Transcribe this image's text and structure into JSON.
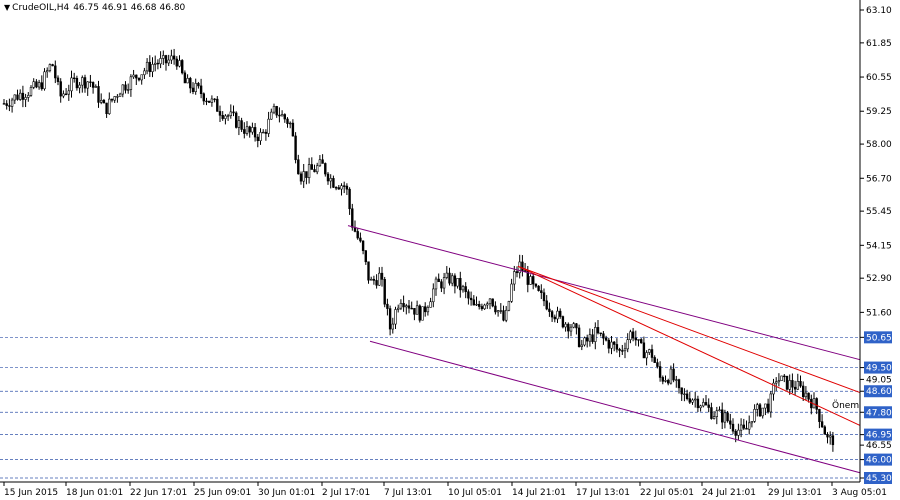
{
  "header": {
    "symbol": "CrudeOIL,H4",
    "open": "46.75",
    "high": "46.91",
    "low": "46.68",
    "close": "46.80"
  },
  "colors": {
    "background": "#ffffff",
    "candle": "#000000",
    "channel": "#800080",
    "fan": "#e00000",
    "level": "#3355aa",
    "level_label_bg": "#2f62c8",
    "level_label_text": "#ffffff"
  },
  "chart_data": {
    "type": "candlestick",
    "title": "CrudeOIL,H4",
    "ylim": [
      45.3,
      63.1
    ],
    "y_ticks": [
      "63.10",
      "61.85",
      "60.55",
      "59.25",
      "58.00",
      "56.70",
      "55.45",
      "54.15",
      "52.90",
      "51.60",
      "50.65",
      "49.50",
      "49.05",
      "48.60",
      "47.80",
      "46.95",
      "46.55",
      "46.00",
      "45.30"
    ],
    "highlighted_levels": [
      "50.65",
      "49.50",
      "48.60",
      "47.80",
      "46.95",
      "46.00",
      "45.30"
    ],
    "x_ticks": [
      "15 Jun 2015",
      "18 Jun 01:01",
      "22 Jun 17:01",
      "25 Jun 09:01",
      "30 Jun 01:01",
      "2 Jul 17:01",
      "7 Jul 13:01",
      "10 Jul 05:01",
      "14 Jul 21:01",
      "17 Jul 13:01",
      "22 Jul 05:01",
      "24 Jul 21:01",
      "29 Jul 13:01",
      "3 Aug 05:01"
    ],
    "grid": false,
    "annotation": "Önem",
    "trendlines": [
      {
        "name": "channel-upper",
        "color": "purple",
        "from": [
          54.9,
          348
        ],
        "to": [
          49.8,
          860
        ]
      },
      {
        "name": "channel-lower",
        "color": "purple",
        "from": [
          50.5,
          370
        ],
        "to": [
          45.5,
          860
        ]
      },
      {
        "name": "fan-1",
        "color": "red",
        "from": [
          53.35,
          518
        ],
        "to": [
          48.55,
          860
        ]
      },
      {
        "name": "fan-2",
        "color": "red",
        "from": [
          53.35,
          518
        ],
        "to": [
          47.3,
          860
        ]
      }
    ],
    "price_path": [
      [
        2,
        59.5
      ],
      [
        20,
        59.9
      ],
      [
        40,
        60.2
      ],
      [
        52,
        61.1
      ],
      [
        60,
        59.8
      ],
      [
        75,
        60.4
      ],
      [
        90,
        60.4
      ],
      [
        105,
        59.3
      ],
      [
        120,
        60.1
      ],
      [
        140,
        60.7
      ],
      [
        155,
        61.1
      ],
      [
        165,
        61.1
      ],
      [
        176,
        61.3
      ],
      [
        185,
        60.3
      ],
      [
        200,
        60.0
      ],
      [
        220,
        59.3
      ],
      [
        235,
        58.9
      ],
      [
        250,
        58.4
      ],
      [
        262,
        58.3
      ],
      [
        275,
        59.3
      ],
      [
        290,
        58.8
      ],
      [
        300,
        56.8
      ],
      [
        312,
        57.0
      ],
      [
        322,
        57.2
      ],
      [
        332,
        56.6
      ],
      [
        346,
        56.4
      ],
      [
        352,
        55.0
      ],
      [
        362,
        54.0
      ],
      [
        370,
        52.7
      ],
      [
        380,
        53.0
      ],
      [
        390,
        51.0
      ],
      [
        400,
        52.2
      ],
      [
        412,
        51.8
      ],
      [
        422,
        51.5
      ],
      [
        435,
        52.6
      ],
      [
        450,
        52.9
      ],
      [
        462,
        52.5
      ],
      [
        475,
        51.7
      ],
      [
        490,
        52.2
      ],
      [
        505,
        51.2
      ],
      [
        513,
        52.9
      ],
      [
        520,
        53.4
      ],
      [
        535,
        52.4
      ],
      [
        548,
        51.9
      ],
      [
        560,
        51.3
      ],
      [
        572,
        51.1
      ],
      [
        582,
        50.3
      ],
      [
        595,
        50.8
      ],
      [
        610,
        50.4
      ],
      [
        620,
        50.1
      ],
      [
        632,
        50.9
      ],
      [
        640,
        50.2
      ],
      [
        652,
        50.0
      ],
      [
        660,
        49.1
      ],
      [
        672,
        49.2
      ],
      [
        680,
        48.4
      ],
      [
        690,
        48.4
      ],
      [
        700,
        48.2
      ],
      [
        712,
        47.8
      ],
      [
        725,
        47.6
      ],
      [
        735,
        47.2
      ],
      [
        745,
        47.0
      ],
      [
        752,
        47.7
      ],
      [
        760,
        47.9
      ],
      [
        770,
        48.1
      ],
      [
        776,
        49.1
      ],
      [
        786,
        48.9
      ],
      [
        796,
        48.8
      ],
      [
        806,
        48.5
      ],
      [
        816,
        48.0
      ],
      [
        822,
        47.4
      ],
      [
        828,
        46.7
      ],
      [
        834,
        46.8
      ]
    ]
  }
}
